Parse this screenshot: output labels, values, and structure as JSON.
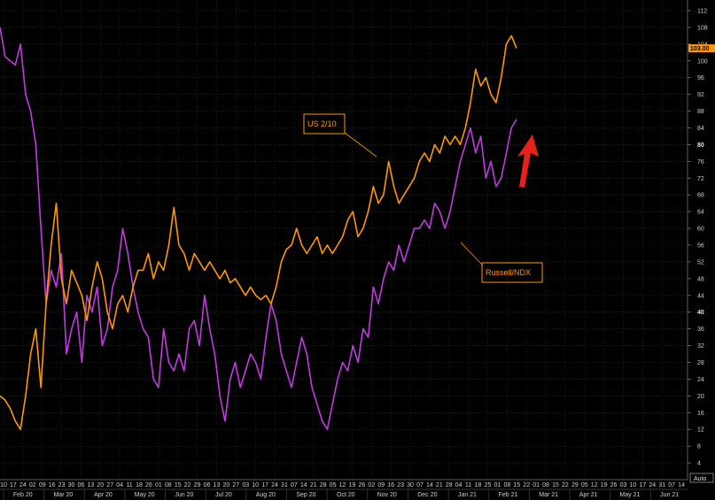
{
  "chart_data": {
    "type": "line",
    "y_axis": {
      "min": 0,
      "max": 112,
      "ticks": [
        4,
        8,
        12,
        16,
        20,
        24,
        28,
        32,
        36,
        40,
        44,
        48,
        52,
        56,
        60,
        64,
        68,
        72,
        76,
        80,
        84,
        88,
        92,
        96,
        100,
        104,
        108,
        112
      ],
      "major_ticks": [
        40,
        80
      ],
      "auto_label": "Auto"
    },
    "x_axis": {
      "day_labels": [
        "10",
        "17",
        "24",
        "02",
        "09",
        "16",
        "23",
        "30",
        "06",
        "13",
        "20",
        "27",
        "04",
        "11",
        "18",
        "26",
        "01",
        "08",
        "15",
        "22",
        "29",
        "06",
        "13",
        "20",
        "27",
        "03",
        "10",
        "17",
        "24",
        "31",
        "07",
        "14",
        "21",
        "28",
        "05",
        "12",
        "19",
        "26",
        "02",
        "09",
        "16",
        "23",
        "30",
        "07",
        "14",
        "21",
        "28",
        "04",
        "11",
        "18",
        "25",
        "01",
        "08",
        "15",
        "22",
        "01",
        "08",
        "15",
        "22",
        "29",
        "05",
        "12",
        "19",
        "26",
        "03",
        "10",
        "17",
        "24",
        "31",
        "07",
        "14"
      ],
      "month_labels": [
        "Feb 20",
        "Mar 20",
        "Apr 20",
        "May 20",
        "Jun 20",
        "Jul 20",
        "Aug 20",
        "Sep 20",
        "Oct 20",
        "Nov 20",
        "Dec 20",
        "Jan 21",
        "Feb 21",
        "Mar 21",
        "Apr 21",
        "May 21",
        "Jun 21"
      ]
    },
    "series": [
      {
        "name": "US 2/10",
        "color": "#ff9800",
        "last_value_label": "103.00",
        "points": [
          [
            0,
            20
          ],
          [
            2,
            19
          ],
          [
            4,
            17
          ],
          [
            6,
            14
          ],
          [
            8,
            12
          ],
          [
            10,
            20
          ],
          [
            12,
            30
          ],
          [
            14,
            36
          ],
          [
            16,
            22
          ],
          [
            18,
            42
          ],
          [
            20,
            56
          ],
          [
            22,
            66
          ],
          [
            24,
            48
          ],
          [
            26,
            42
          ],
          [
            28,
            50
          ],
          [
            30,
            47
          ],
          [
            32,
            44
          ],
          [
            34,
            38
          ],
          [
            36,
            46
          ],
          [
            38,
            52
          ],
          [
            40,
            48
          ],
          [
            42,
            40
          ],
          [
            44,
            36
          ],
          [
            46,
            42
          ],
          [
            48,
            44
          ],
          [
            50,
            40
          ],
          [
            52,
            46
          ],
          [
            54,
            50
          ],
          [
            56,
            50
          ],
          [
            58,
            54
          ],
          [
            60,
            48
          ],
          [
            62,
            52
          ],
          [
            64,
            50
          ],
          [
            66,
            56
          ],
          [
            68,
            65
          ],
          [
            70,
            56
          ],
          [
            72,
            54
          ],
          [
            74,
            50
          ],
          [
            76,
            54
          ],
          [
            78,
            52
          ],
          [
            80,
            50
          ],
          [
            82,
            52
          ],
          [
            84,
            50
          ],
          [
            86,
            48
          ],
          [
            88,
            50
          ],
          [
            90,
            47
          ],
          [
            92,
            48
          ],
          [
            94,
            46
          ],
          [
            96,
            44
          ],
          [
            98,
            46
          ],
          [
            100,
            44
          ],
          [
            102,
            43
          ],
          [
            104,
            44
          ],
          [
            106,
            42
          ],
          [
            108,
            46
          ],
          [
            110,
            52
          ],
          [
            112,
            55
          ],
          [
            114,
            56
          ],
          [
            116,
            60
          ],
          [
            118,
            56
          ],
          [
            120,
            54
          ],
          [
            122,
            56
          ],
          [
            124,
            58
          ],
          [
            126,
            54
          ],
          [
            128,
            56
          ],
          [
            130,
            54
          ],
          [
            132,
            56
          ],
          [
            134,
            58
          ],
          [
            136,
            62
          ],
          [
            138,
            64
          ],
          [
            140,
            58
          ],
          [
            142,
            60
          ],
          [
            144,
            64
          ],
          [
            146,
            70
          ],
          [
            148,
            66
          ],
          [
            150,
            68
          ],
          [
            152,
            76
          ],
          [
            154,
            70
          ],
          [
            156,
            66
          ],
          [
            158,
            68
          ],
          [
            160,
            70
          ],
          [
            162,
            72
          ],
          [
            164,
            76
          ],
          [
            166,
            78
          ],
          [
            168,
            76
          ],
          [
            170,
            80
          ],
          [
            172,
            78
          ],
          [
            174,
            82
          ],
          [
            176,
            80
          ],
          [
            178,
            82
          ],
          [
            180,
            80
          ],
          [
            182,
            84
          ],
          [
            184,
            90
          ],
          [
            186,
            98
          ],
          [
            188,
            94
          ],
          [
            190,
            96
          ],
          [
            192,
            92
          ],
          [
            194,
            90
          ],
          [
            196,
            96
          ],
          [
            198,
            104
          ],
          [
            200,
            106
          ],
          [
            202,
            103
          ]
        ]
      },
      {
        "name": "Russell/NDX",
        "color": "#c23be0",
        "points": [
          [
            0,
            108
          ],
          [
            2,
            101
          ],
          [
            4,
            100
          ],
          [
            6,
            99
          ],
          [
            8,
            104
          ],
          [
            10,
            92
          ],
          [
            12,
            88
          ],
          [
            14,
            80
          ],
          [
            16,
            60
          ],
          [
            18,
            42
          ],
          [
            20,
            50
          ],
          [
            22,
            46
          ],
          [
            24,
            54
          ],
          [
            26,
            30
          ],
          [
            28,
            36
          ],
          [
            30,
            40
          ],
          [
            32,
            28
          ],
          [
            34,
            44
          ],
          [
            36,
            40
          ],
          [
            38,
            46
          ],
          [
            40,
            32
          ],
          [
            42,
            36
          ],
          [
            44,
            46
          ],
          [
            46,
            50
          ],
          [
            48,
            60
          ],
          [
            50,
            54
          ],
          [
            52,
            46
          ],
          [
            54,
            40
          ],
          [
            56,
            36
          ],
          [
            58,
            34
          ],
          [
            60,
            24
          ],
          [
            62,
            22
          ],
          [
            64,
            36
          ],
          [
            66,
            28
          ],
          [
            68,
            26
          ],
          [
            70,
            30
          ],
          [
            72,
            26
          ],
          [
            74,
            36
          ],
          [
            76,
            38
          ],
          [
            78,
            32
          ],
          [
            80,
            44
          ],
          [
            82,
            36
          ],
          [
            84,
            30
          ],
          [
            86,
            20
          ],
          [
            88,
            14
          ],
          [
            90,
            24
          ],
          [
            92,
            28
          ],
          [
            94,
            22
          ],
          [
            96,
            26
          ],
          [
            98,
            30
          ],
          [
            100,
            28
          ],
          [
            102,
            24
          ],
          [
            104,
            34
          ],
          [
            106,
            42
          ],
          [
            108,
            38
          ],
          [
            110,
            30
          ],
          [
            112,
            26
          ],
          [
            114,
            22
          ],
          [
            116,
            28
          ],
          [
            118,
            34
          ],
          [
            120,
            30
          ],
          [
            122,
            22
          ],
          [
            124,
            18
          ],
          [
            126,
            14
          ],
          [
            128,
            12
          ],
          [
            130,
            18
          ],
          [
            132,
            24
          ],
          [
            134,
            28
          ],
          [
            136,
            26
          ],
          [
            138,
            32
          ],
          [
            140,
            28
          ],
          [
            142,
            36
          ],
          [
            144,
            34
          ],
          [
            146,
            46
          ],
          [
            148,
            42
          ],
          [
            150,
            48
          ],
          [
            152,
            52
          ],
          [
            154,
            50
          ],
          [
            156,
            56
          ],
          [
            158,
            52
          ],
          [
            160,
            56
          ],
          [
            162,
            60
          ],
          [
            164,
            60
          ],
          [
            166,
            62
          ],
          [
            168,
            60
          ],
          [
            170,
            66
          ],
          [
            172,
            64
          ],
          [
            174,
            60
          ],
          [
            176,
            64
          ],
          [
            178,
            70
          ],
          [
            180,
            76
          ],
          [
            182,
            80
          ],
          [
            184,
            84
          ],
          [
            186,
            78
          ],
          [
            188,
            82
          ],
          [
            190,
            72
          ],
          [
            192,
            76
          ],
          [
            194,
            70
          ],
          [
            196,
            72
          ],
          [
            198,
            78
          ],
          [
            200,
            84
          ],
          [
            202,
            86
          ]
        ]
      }
    ],
    "annotations": [
      {
        "text": "US 2/10",
        "color": "#ff9800"
      },
      {
        "text": "Russell/NDX",
        "color": "#ff9800"
      }
    ],
    "grid": true,
    "arrow": {
      "color": "#e8201a"
    }
  }
}
